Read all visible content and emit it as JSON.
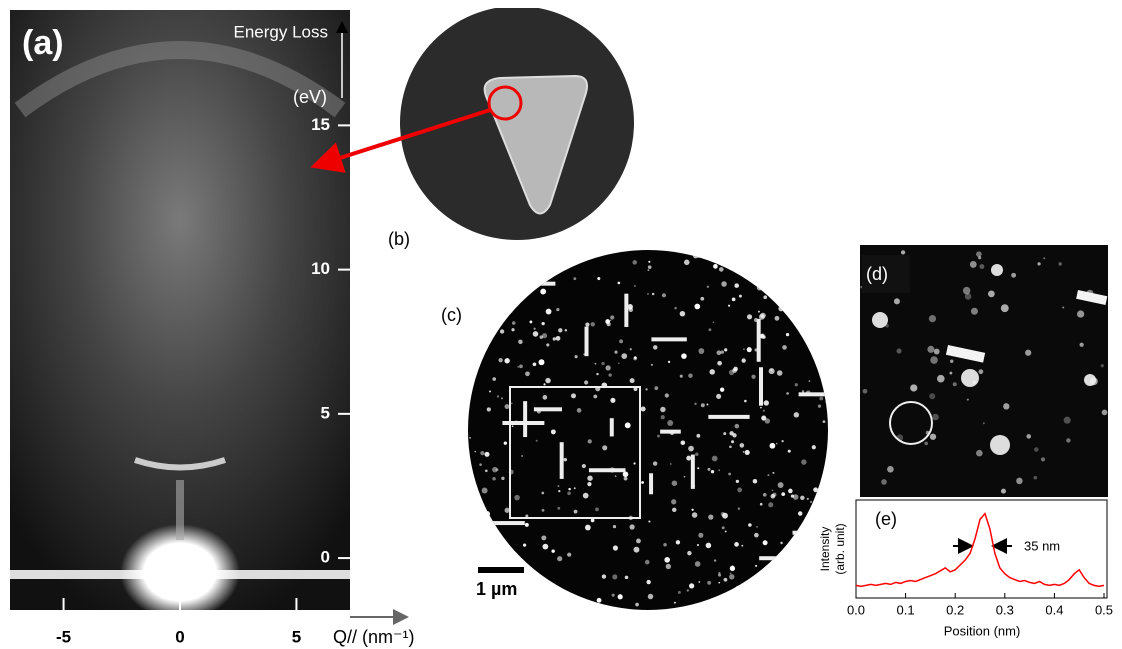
{
  "chart_data": [
    {
      "type": "image",
      "label": "(a)",
      "ylabel": "Energy Loss",
      "yunit": "(eV)",
      "xlabel": "Q// (nm⁻¹)",
      "xlim": [
        -7.3,
        7.3
      ],
      "ylim": [
        -1.8,
        19
      ],
      "xticks": [
        -5,
        0,
        5
      ],
      "yticks": [
        0,
        5,
        10,
        15
      ]
    },
    {
      "type": "line",
      "label": "(e)",
      "xlabel": "Position (nm)",
      "ylabel": [
        "Intensity",
        "(arb. unit)"
      ],
      "annotation": "35 nm",
      "color": "#ff0000",
      "xlim": [
        0,
        0.5
      ],
      "ylim": [
        0,
        1
      ],
      "xticks": [
        {
          "value": 0,
          "label": "0.0"
        },
        {
          "value": 0.1,
          "label": "0.1"
        },
        {
          "value": 0.2,
          "label": "0.2"
        },
        {
          "value": 0.3,
          "label": "0.3"
        },
        {
          "value": 0.4,
          "label": "0.4"
        },
        {
          "value": 0.5,
          "label": "0.5"
        }
      ],
      "x": [
        0,
        0.01,
        0.02,
        0.03,
        0.04,
        0.05,
        0.06,
        0.07,
        0.08,
        0.09,
        0.1,
        0.11,
        0.12,
        0.13,
        0.14,
        0.15,
        0.16,
        0.17,
        0.18,
        0.19,
        0.2,
        0.21,
        0.22,
        0.23,
        0.24,
        0.25,
        0.26,
        0.27,
        0.28,
        0.29,
        0.3,
        0.31,
        0.32,
        0.33,
        0.34,
        0.35,
        0.36,
        0.37,
        0.38,
        0.39,
        0.4,
        0.41,
        0.42,
        0.43,
        0.44,
        0.45,
        0.46,
        0.47,
        0.48,
        0.49,
        0.5
      ],
      "values": [
        0.12,
        0.11,
        0.12,
        0.13,
        0.12,
        0.13,
        0.14,
        0.13,
        0.15,
        0.14,
        0.16,
        0.17,
        0.16,
        0.18,
        0.2,
        0.22,
        0.24,
        0.27,
        0.3,
        0.26,
        0.28,
        0.33,
        0.38,
        0.45,
        0.6,
        0.8,
        0.86,
        0.7,
        0.45,
        0.3,
        0.24,
        0.2,
        0.18,
        0.16,
        0.17,
        0.15,
        0.14,
        0.16,
        0.13,
        0.12,
        0.13,
        0.12,
        0.14,
        0.18,
        0.24,
        0.28,
        0.2,
        0.14,
        0.12,
        0.11,
        0.12
      ]
    }
  ],
  "labels": {
    "b": "(b)",
    "c": "(c)",
    "d": "(d)",
    "scale_bar": "1 µm"
  }
}
